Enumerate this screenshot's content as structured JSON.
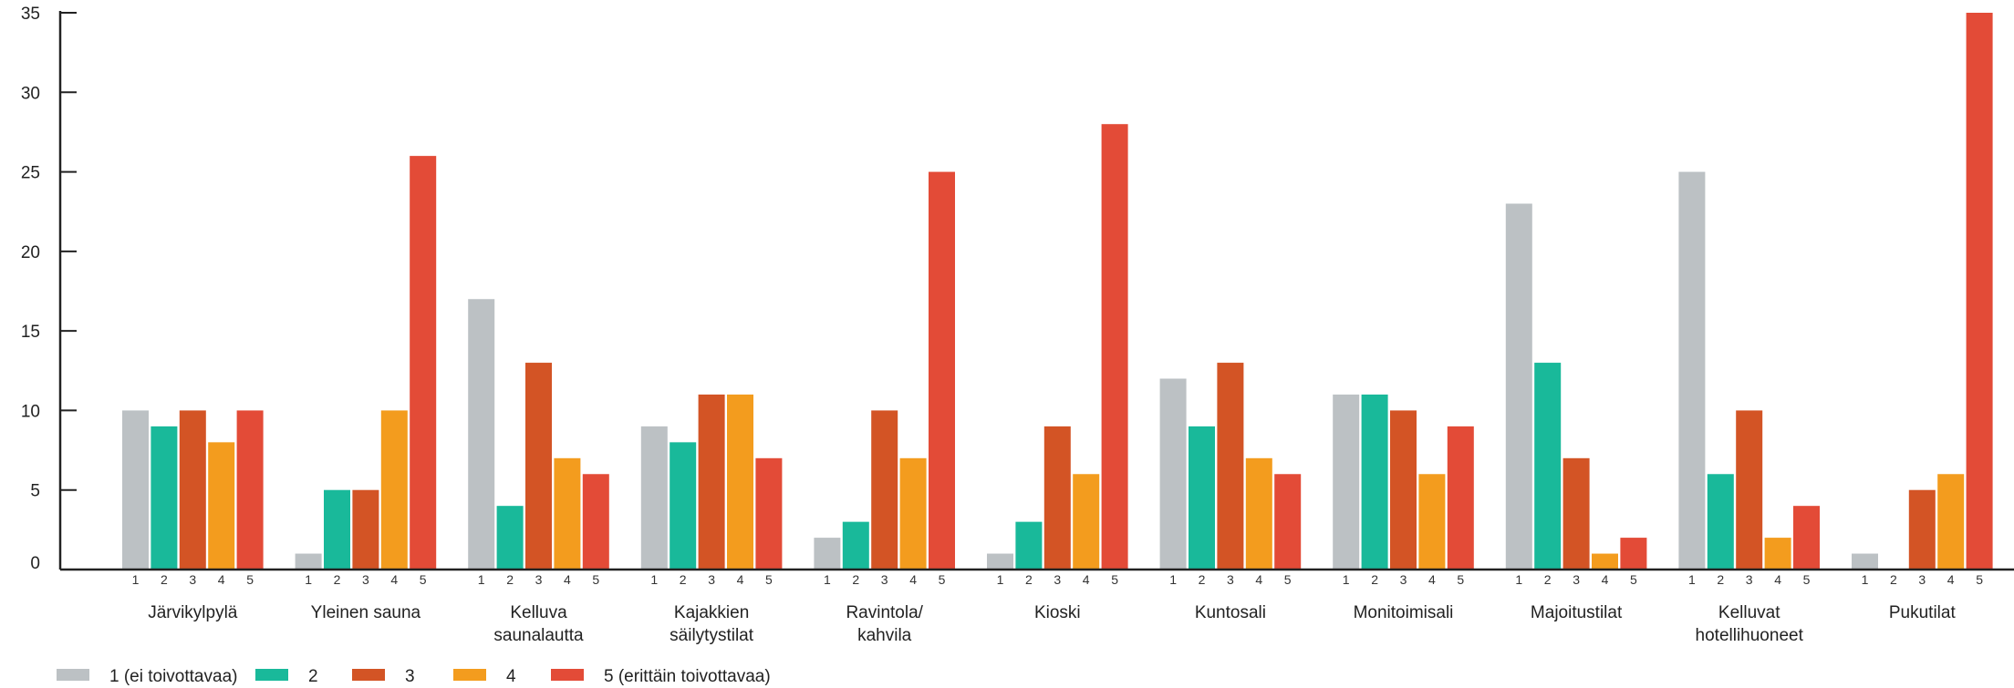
{
  "chart_data": {
    "type": "bar",
    "categories": [
      [
        "Järvikylpylä"
      ],
      [
        "Yleinen sauna"
      ],
      [
        "Kelluva",
        "saunalautta"
      ],
      [
        "Kajakkien",
        "säilytystilat"
      ],
      [
        "Ravintola/",
        "kahvila"
      ],
      [
        "Kioski"
      ],
      [
        "Kuntosali"
      ],
      [
        "Monitoimisali"
      ],
      [
        "Majoitustilat"
      ],
      [
        "Kelluvat",
        "hotellihuoneet"
      ],
      [
        "Pukutilat"
      ]
    ],
    "sub_labels": [
      "1",
      "2",
      "3",
      "4",
      "5"
    ],
    "series": [
      {
        "name": "1 (ei toivottavaa)",
        "color": "#bcc1c4",
        "values": [
          10,
          1,
          17,
          9,
          2,
          1,
          12,
          11,
          23,
          25,
          1
        ]
      },
      {
        "name": "2",
        "color": "#19b99a",
        "values": [
          9,
          5,
          4,
          8,
          3,
          3,
          9,
          11,
          13,
          6,
          0
        ]
      },
      {
        "name": "3",
        "color": "#d35425",
        "values": [
          10,
          5,
          13,
          11,
          10,
          9,
          13,
          10,
          7,
          10,
          5
        ]
      },
      {
        "name": "4",
        "color": "#f39c1e",
        "values": [
          8,
          10,
          7,
          11,
          7,
          6,
          7,
          6,
          1,
          2,
          6
        ]
      },
      {
        "name": "5 (erittäin toivottavaa)",
        "color": "#e34b37",
        "values": [
          10,
          26,
          6,
          7,
          25,
          28,
          6,
          9,
          2,
          4,
          35
        ]
      }
    ],
    "ylim": [
      0,
      35
    ],
    "yticks": [
      0,
      5,
      10,
      15,
      20,
      25,
      30,
      35
    ],
    "title": "",
    "xlabel": "",
    "ylabel": "",
    "grid": false,
    "legend_position": "bottom-left"
  }
}
